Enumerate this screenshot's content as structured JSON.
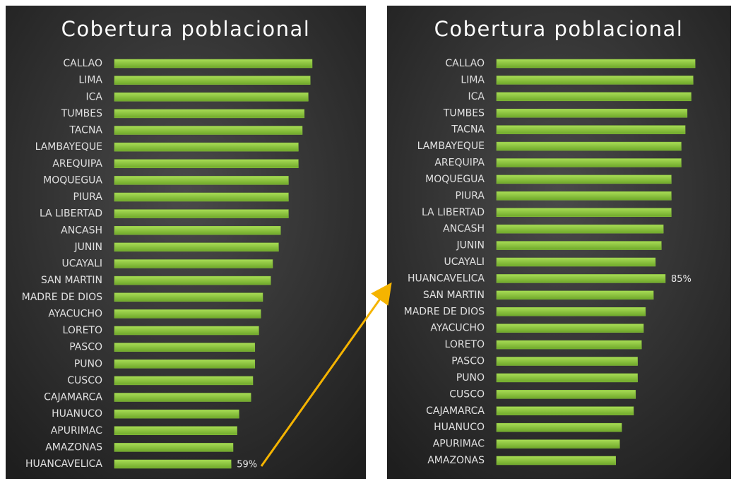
{
  "chart_data": [
    {
      "type": "bar",
      "title": "Cobertura poblacional",
      "color": "#8cc63f",
      "xlim": [
        0,
        120
      ],
      "categories": [
        "CALLAO",
        "LIMA",
        "ICA",
        "TUMBES",
        "TACNA",
        "LAMBAYEQUE",
        "AREQUIPA",
        "MOQUEGUA",
        "PIURA",
        "LA LIBERTAD",
        "ANCASH",
        "JUNIN",
        "UCAYALI",
        "SAN MARTIN",
        "MADRE DE DIOS",
        "AYACUCHO",
        "LORETO",
        "PASCO",
        "PUNO",
        "CUSCO",
        "CAJAMARCA",
        "HUANUCO",
        "APURIMAC",
        "AMAZONAS",
        "HUANCAVELICA"
      ],
      "values": [
        100,
        99,
        98,
        96,
        95,
        93,
        93,
        88,
        88,
        88,
        84,
        83,
        80,
        79,
        75,
        74,
        73,
        71,
        71,
        70,
        69,
        63,
        62,
        60,
        59
      ],
      "value_labels": [
        null,
        null,
        null,
        null,
        null,
        null,
        null,
        null,
        null,
        null,
        null,
        null,
        null,
        null,
        null,
        null,
        null,
        null,
        null,
        null,
        null,
        null,
        null,
        null,
        "59%"
      ]
    },
    {
      "type": "bar",
      "title": "Cobertura poblacional",
      "color": "#8cc63f",
      "xlim": [
        0,
        106
      ],
      "categories": [
        "CALLAO",
        "LIMA",
        "ICA",
        "TUMBES",
        "TACNA",
        "LAMBAYEQUE",
        "AREQUIPA",
        "MOQUEGUA",
        "PIURA",
        "LA LIBERTAD",
        "ANCASH",
        "JUNIN",
        "UCAYALI",
        "HUANCAVELICA",
        "SAN MARTIN",
        "MADRE DE DIOS",
        "AYACUCHO",
        "LORETO",
        "PASCO",
        "PUNO",
        "CUSCO",
        "CAJAMARCA",
        "HUANUCO",
        "APURIMAC",
        "AMAZONAS"
      ],
      "values": [
        100,
        99,
        98,
        96,
        95,
        93,
        93,
        88,
        88,
        88,
        84,
        83,
        80,
        85,
        79,
        75,
        74,
        73,
        71,
        71,
        70,
        69,
        63,
        62,
        60
      ],
      "value_labels": [
        null,
        null,
        null,
        null,
        null,
        null,
        null,
        null,
        null,
        null,
        null,
        null,
        null,
        "85%",
        null,
        null,
        null,
        null,
        null,
        null,
        null,
        null,
        null,
        null,
        null
      ]
    }
  ]
}
